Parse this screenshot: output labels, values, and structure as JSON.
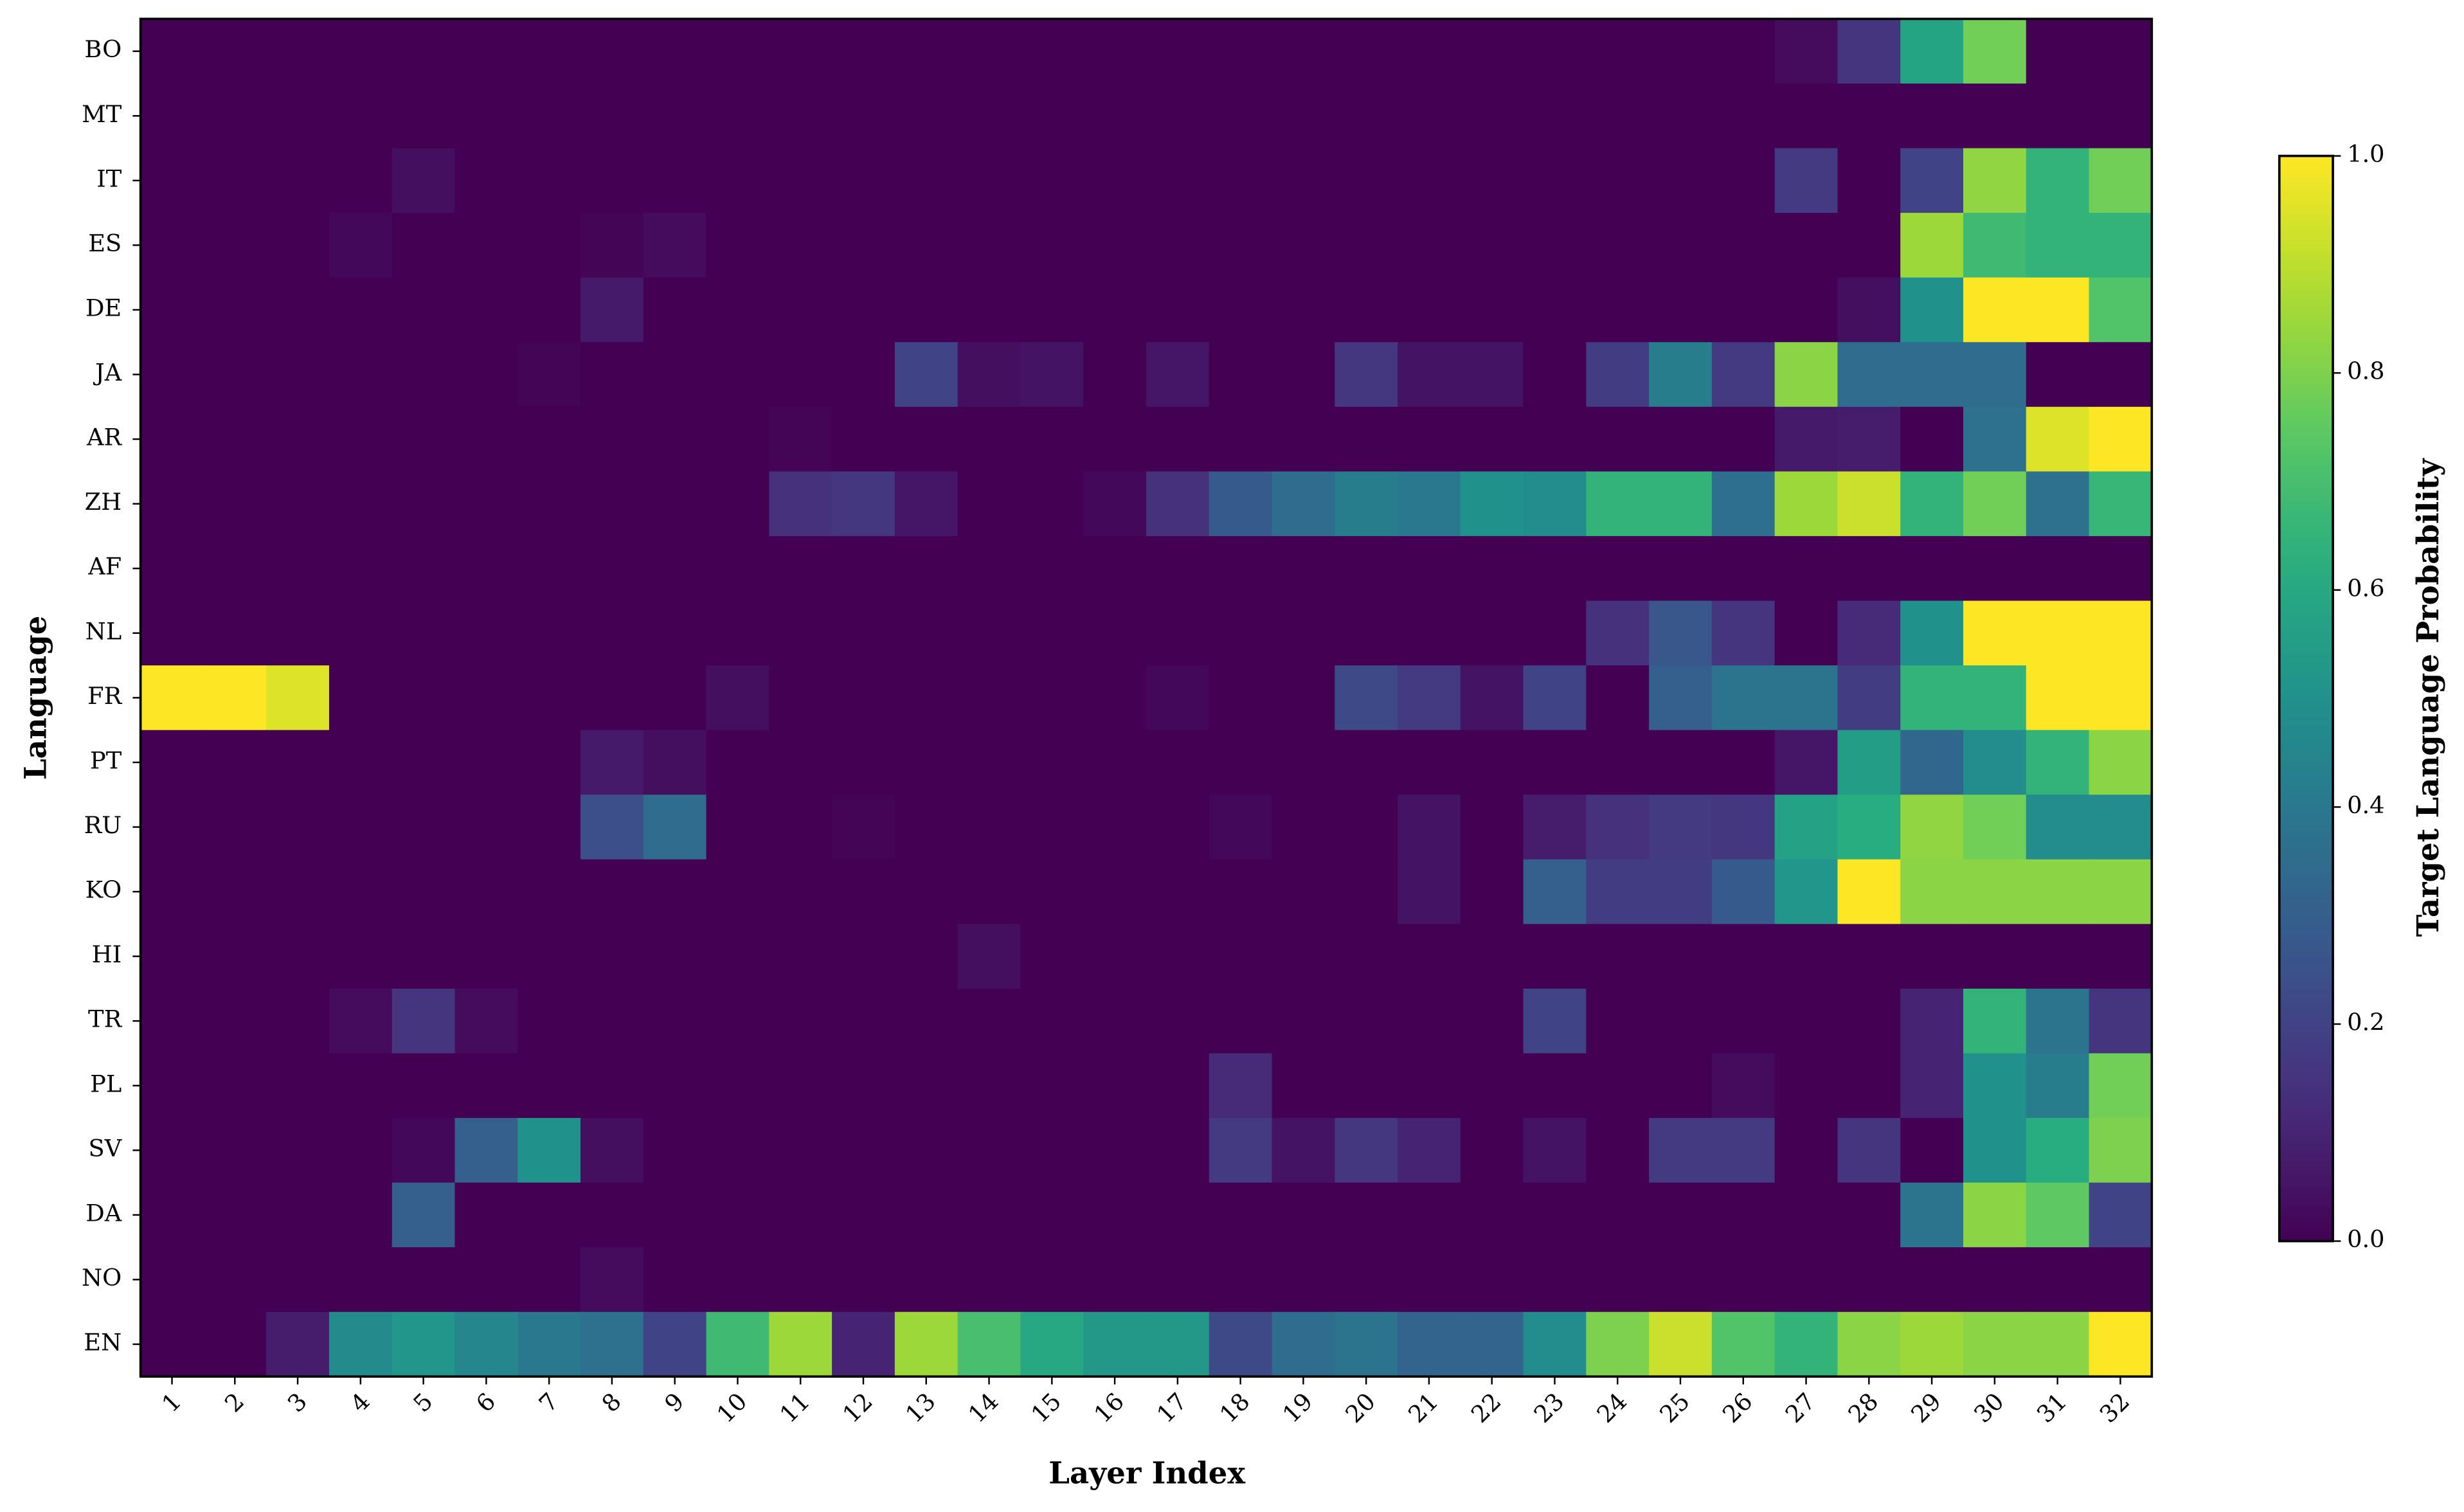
{
  "chart_data": {
    "type": "heatmap",
    "xlabel": "Layer Index",
    "ylabel": "Language",
    "colorbar_label": "Target Language Probability",
    "colormap": "viridis",
    "clim": [
      0,
      1
    ],
    "cticks": [
      {
        "value": 0,
        "label": "0.0"
      },
      {
        "value": 0.2,
        "label": "0.2"
      },
      {
        "value": 0.4,
        "label": "0.4"
      },
      {
        "value": 0.6,
        "label": "0.6"
      },
      {
        "value": 0.8,
        "label": "0.8"
      },
      {
        "value": 1,
        "label": "1.0"
      }
    ],
    "x": [
      1,
      2,
      3,
      4,
      5,
      6,
      7,
      8,
      9,
      10,
      11,
      12,
      13,
      14,
      15,
      16,
      17,
      18,
      19,
      20,
      21,
      22,
      23,
      24,
      25,
      26,
      27,
      28,
      29,
      30,
      31,
      32
    ],
    "y": [
      "BO",
      "MT",
      "IT",
      "ES",
      "DE",
      "JA",
      "AR",
      "ZH",
      "AF",
      "NL",
      "FR",
      "PT",
      "RU",
      "KO",
      "HI",
      "TR",
      "PL",
      "SV",
      "DA",
      "NO",
      "EN"
    ],
    "values": [
      [
        0,
        0,
        0,
        0,
        0,
        0,
        0,
        0,
        0,
        0,
        0,
        0,
        0,
        0,
        0,
        0,
        0,
        0,
        0,
        0,
        0,
        0,
        0,
        0,
        0,
        0,
        0.03,
        0.15,
        0.58,
        0.78,
        0,
        0
      ],
      [
        0,
        0,
        0,
        0,
        0,
        0,
        0,
        0,
        0,
        0,
        0,
        0,
        0,
        0,
        0,
        0,
        0,
        0,
        0,
        0,
        0,
        0,
        0,
        0,
        0,
        0,
        0,
        0,
        0,
        0,
        0,
        0
      ],
      [
        0,
        0,
        0,
        0,
        0.04,
        0,
        0,
        0,
        0,
        0,
        0,
        0,
        0,
        0,
        0,
        0,
        0,
        0,
        0,
        0,
        0,
        0,
        0,
        0,
        0,
        0,
        0.17,
        0,
        0.2,
        0.83,
        0.65,
        0.78
      ],
      [
        0,
        0,
        0,
        0.02,
        0,
        0,
        0,
        0.01,
        0.03,
        0,
        0,
        0,
        0,
        0,
        0,
        0,
        0,
        0,
        0,
        0,
        0,
        0,
        0,
        0,
        0,
        0,
        0,
        0,
        0.85,
        0.68,
        0.65,
        0.65
      ],
      [
        0,
        0,
        0,
        0,
        0,
        0,
        0,
        0.07,
        0,
        0,
        0,
        0,
        0,
        0,
        0,
        0,
        0,
        0,
        0,
        0,
        0,
        0,
        0,
        0,
        0,
        0,
        0,
        0.04,
        0.5,
        1,
        1,
        0.72
      ],
      [
        0,
        0,
        0,
        0,
        0,
        0,
        0.01,
        0,
        0,
        0,
        0,
        0,
        0.2,
        0.04,
        0.05,
        0,
        0.06,
        0,
        0,
        0.16,
        0.05,
        0.05,
        0,
        0.18,
        0.42,
        0.17,
        0.82,
        0.35,
        0.35,
        0.35,
        0,
        0
      ],
      [
        0,
        0,
        0,
        0,
        0,
        0,
        0,
        0,
        0,
        0,
        0.01,
        0,
        0,
        0,
        0,
        0,
        0,
        0,
        0,
        0,
        0,
        0,
        0,
        0,
        0,
        0,
        0.07,
        0.08,
        0,
        0.37,
        0.95,
        1
      ],
      [
        0,
        0,
        0,
        0,
        0,
        0,
        0,
        0,
        0,
        0,
        0.14,
        0.16,
        0.06,
        0,
        0,
        0.02,
        0.14,
        0.28,
        0.35,
        0.42,
        0.4,
        0.5,
        0.48,
        0.65,
        0.65,
        0.36,
        0.85,
        0.92,
        0.65,
        0.78,
        0.37,
        0.66
      ],
      [
        0,
        0,
        0,
        0,
        0,
        0,
        0,
        0,
        0,
        0,
        0,
        0,
        0,
        0,
        0,
        0,
        0,
        0,
        0,
        0,
        0,
        0,
        0,
        0,
        0,
        0,
        0,
        0,
        0,
        0,
        0,
        0
      ],
      [
        0,
        0,
        0,
        0,
        0,
        0,
        0,
        0,
        0,
        0,
        0,
        0,
        0,
        0,
        0,
        0,
        0,
        0,
        0,
        0,
        0,
        0,
        0,
        0.14,
        0.27,
        0.15,
        0,
        0.12,
        0.5,
        1,
        1,
        1
      ],
      [
        1,
        1,
        0.95,
        0,
        0,
        0,
        0,
        0,
        0,
        0.04,
        0,
        0,
        0,
        0,
        0,
        0,
        0.02,
        0,
        0,
        0.22,
        0.17,
        0.05,
        0.2,
        0,
        0.3,
        0.38,
        0.38,
        0.18,
        0.65,
        0.65,
        1,
        1
      ],
      [
        0,
        0,
        0,
        0,
        0,
        0,
        0,
        0.07,
        0.04,
        0,
        0,
        0,
        0,
        0,
        0,
        0,
        0,
        0,
        0,
        0,
        0,
        0,
        0,
        0,
        0,
        0,
        0.06,
        0.55,
        0.33,
        0.48,
        0.65,
        0.82
      ],
      [
        0,
        0,
        0,
        0,
        0,
        0,
        0,
        0.24,
        0.35,
        0,
        0,
        0.01,
        0,
        0,
        0,
        0,
        0,
        0.02,
        0,
        0,
        0.05,
        0,
        0.08,
        0.14,
        0.17,
        0.16,
        0.57,
        0.62,
        0.83,
        0.78,
        0.48,
        0.48
      ],
      [
        0,
        0,
        0,
        0,
        0,
        0,
        0,
        0,
        0,
        0,
        0,
        0,
        0,
        0,
        0,
        0,
        0,
        0,
        0,
        0,
        0.05,
        0,
        0.3,
        0.18,
        0.18,
        0.28,
        0.52,
        1,
        0.82,
        0.82,
        0.82,
        0.82
      ],
      [
        0,
        0,
        0,
        0,
        0,
        0,
        0,
        0,
        0,
        0,
        0,
        0,
        0,
        0.04,
        0,
        0,
        0,
        0,
        0,
        0,
        0,
        0,
        0,
        0,
        0,
        0,
        0,
        0,
        0,
        0,
        0,
        0
      ],
      [
        0,
        0,
        0,
        0.03,
        0.15,
        0.03,
        0,
        0,
        0,
        0,
        0,
        0,
        0,
        0,
        0,
        0,
        0,
        0,
        0,
        0,
        0,
        0,
        0.2,
        0,
        0,
        0,
        0,
        0,
        0.1,
        0.65,
        0.38,
        0.15
      ],
      [
        0,
        0,
        0,
        0,
        0,
        0,
        0,
        0,
        0,
        0,
        0,
        0,
        0,
        0,
        0,
        0,
        0,
        0.12,
        0,
        0,
        0,
        0,
        0,
        0,
        0,
        0.03,
        0,
        0,
        0.1,
        0.5,
        0.42,
        0.78
      ],
      [
        0,
        0,
        0,
        0,
        0.02,
        0.3,
        0.5,
        0.04,
        0,
        0,
        0,
        0,
        0,
        0,
        0,
        0,
        0,
        0.17,
        0.05,
        0.16,
        0.1,
        0,
        0.05,
        0,
        0.17,
        0.17,
        0,
        0.15,
        0,
        0.5,
        0.62,
        0.8
      ],
      [
        0,
        0,
        0,
        0,
        0.3,
        0,
        0,
        0,
        0,
        0,
        0,
        0,
        0,
        0,
        0,
        0,
        0,
        0,
        0,
        0,
        0,
        0,
        0,
        0,
        0,
        0,
        0,
        0,
        0.38,
        0.82,
        0.75,
        0.2
      ],
      [
        0,
        0,
        0,
        0,
        0,
        0,
        0,
        0.03,
        0,
        0,
        0,
        0,
        0,
        0,
        0,
        0,
        0,
        0,
        0,
        0,
        0,
        0,
        0,
        0,
        0,
        0,
        0,
        0,
        0,
        0,
        0,
        0
      ],
      [
        0,
        0,
        0.08,
        0.47,
        0.52,
        0.46,
        0.4,
        0.37,
        0.2,
        0.68,
        0.85,
        0.1,
        0.85,
        0.7,
        0.6,
        0.53,
        0.53,
        0.22,
        0.35,
        0.38,
        0.32,
        0.32,
        0.48,
        0.8,
        0.92,
        0.72,
        0.65,
        0.82,
        0.85,
        0.82,
        0.82,
        1
      ]
    ]
  }
}
